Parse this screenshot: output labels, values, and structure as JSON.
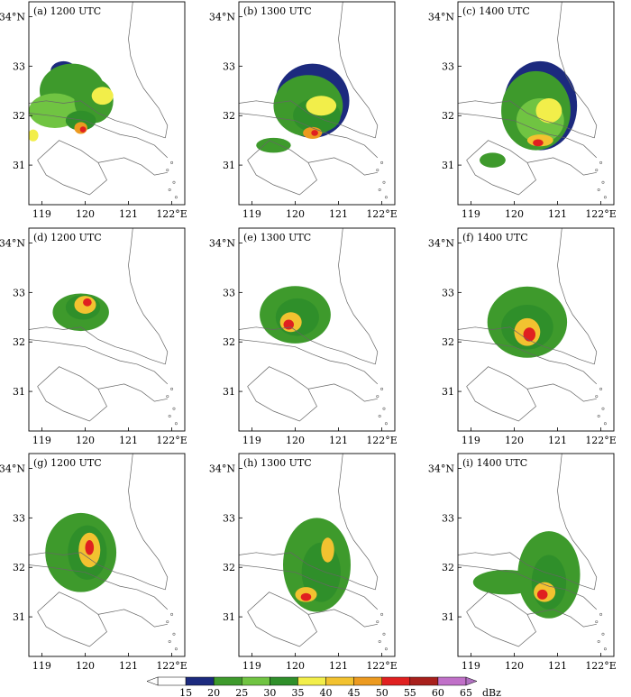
{
  "figure": {
    "xticks": [
      "119",
      "120",
      "121",
      "122°E"
    ],
    "yticks": [
      "34°N",
      "33",
      "32",
      "31"
    ],
    "panels": [
      {
        "label": "(a) 1200  UTC",
        "cells": [
          {
            "lon": 119.5,
            "lat": 32.9,
            "rx": 0.3,
            "ry": 0.2,
            "level": 20
          },
          {
            "lon": 119.7,
            "lat": 32.5,
            "rx": 0.75,
            "ry": 0.55,
            "level": 25
          },
          {
            "lon": 119.3,
            "lat": 32.1,
            "rx": 0.6,
            "ry": 0.35,
            "level": 30
          },
          {
            "lon": 120.2,
            "lat": 32.3,
            "rx": 0.45,
            "ry": 0.45,
            "level": 25
          },
          {
            "lon": 119.9,
            "lat": 31.9,
            "rx": 0.35,
            "ry": 0.2,
            "level": 35
          },
          {
            "lon": 120.4,
            "lat": 32.4,
            "rx": 0.25,
            "ry": 0.18,
            "level": 40
          },
          {
            "lon": 119.9,
            "lat": 31.75,
            "rx": 0.15,
            "ry": 0.12,
            "level": 50
          },
          {
            "lon": 119.95,
            "lat": 31.72,
            "rx": 0.07,
            "ry": 0.06,
            "level": 55
          },
          {
            "lon": 118.8,
            "lat": 31.6,
            "rx": 0.12,
            "ry": 0.12,
            "level": 40
          }
        ]
      },
      {
        "label": "(b) 1300  UTC",
        "cells": [
          {
            "lon": 120.4,
            "lat": 32.3,
            "rx": 0.85,
            "ry": 0.75,
            "level": 20
          },
          {
            "lon": 120.3,
            "lat": 32.2,
            "rx": 0.8,
            "ry": 0.62,
            "level": 25
          },
          {
            "lon": 120.5,
            "lat": 32.0,
            "rx": 0.55,
            "ry": 0.35,
            "level": 35
          },
          {
            "lon": 120.6,
            "lat": 32.2,
            "rx": 0.35,
            "ry": 0.2,
            "level": 40
          },
          {
            "lon": 120.4,
            "lat": 31.65,
            "rx": 0.22,
            "ry": 0.12,
            "level": 50
          },
          {
            "lon": 120.45,
            "lat": 31.65,
            "rx": 0.08,
            "ry": 0.06,
            "level": 55
          },
          {
            "lon": 119.5,
            "lat": 31.4,
            "rx": 0.4,
            "ry": 0.15,
            "level": 25
          }
        ]
      },
      {
        "label": "(c) 1400  UTC",
        "cells": [
          {
            "lon": 120.6,
            "lat": 32.2,
            "rx": 0.85,
            "ry": 0.9,
            "level": 20
          },
          {
            "lon": 120.5,
            "lat": 32.1,
            "rx": 0.8,
            "ry": 0.8,
            "level": 25
          },
          {
            "lon": 120.6,
            "lat": 31.9,
            "rx": 0.55,
            "ry": 0.45,
            "level": 30
          },
          {
            "lon": 120.8,
            "lat": 32.1,
            "rx": 0.3,
            "ry": 0.25,
            "level": 40
          },
          {
            "lon": 120.6,
            "lat": 31.5,
            "rx": 0.3,
            "ry": 0.12,
            "level": 45
          },
          {
            "lon": 120.55,
            "lat": 31.45,
            "rx": 0.12,
            "ry": 0.07,
            "level": 55
          },
          {
            "lon": 119.5,
            "lat": 31.1,
            "rx": 0.3,
            "ry": 0.15,
            "level": 25
          }
        ]
      },
      {
        "label": "(d) 1200  UTC",
        "cells": [
          {
            "lon": 119.9,
            "lat": 32.6,
            "rx": 0.75,
            "ry": 0.45,
            "level": 15
          },
          {
            "lon": 119.9,
            "lat": 32.6,
            "rx": 0.65,
            "ry": 0.38,
            "level": 25
          },
          {
            "lon": 119.95,
            "lat": 32.7,
            "rx": 0.4,
            "ry": 0.25,
            "level": 35
          },
          {
            "lon": 120.0,
            "lat": 32.75,
            "rx": 0.25,
            "ry": 0.18,
            "level": 45
          },
          {
            "lon": 120.05,
            "lat": 32.8,
            "rx": 0.1,
            "ry": 0.08,
            "level": 55
          }
        ]
      },
      {
        "label": "(e) 1300  UTC",
        "cells": [
          {
            "lon": 120.0,
            "lat": 32.55,
            "rx": 0.9,
            "ry": 0.65,
            "level": 15
          },
          {
            "lon": 120.0,
            "lat": 32.55,
            "rx": 0.82,
            "ry": 0.58,
            "level": 25
          },
          {
            "lon": 120.05,
            "lat": 32.5,
            "rx": 0.5,
            "ry": 0.38,
            "level": 35
          },
          {
            "lon": 119.9,
            "lat": 32.4,
            "rx": 0.25,
            "ry": 0.2,
            "level": 45
          },
          {
            "lon": 119.85,
            "lat": 32.35,
            "rx": 0.12,
            "ry": 0.1,
            "level": 55
          }
        ]
      },
      {
        "label": "(f) 1400  UTC",
        "cells": [
          {
            "lon": 120.3,
            "lat": 32.45,
            "rx": 1.0,
            "ry": 0.8,
            "level": 15
          },
          {
            "lon": 120.3,
            "lat": 32.4,
            "rx": 0.92,
            "ry": 0.72,
            "level": 25
          },
          {
            "lon": 120.3,
            "lat": 32.3,
            "rx": 0.6,
            "ry": 0.45,
            "level": 35
          },
          {
            "lon": 120.3,
            "lat": 32.2,
            "rx": 0.3,
            "ry": 0.28,
            "level": 45
          },
          {
            "lon": 120.35,
            "lat": 32.15,
            "rx": 0.14,
            "ry": 0.14,
            "level": 55
          }
        ]
      },
      {
        "label": "(g) 1200  UTC",
        "cells": [
          {
            "lon": 119.9,
            "lat": 32.35,
            "rx": 0.9,
            "ry": 0.9,
            "level": 15
          },
          {
            "lon": 119.9,
            "lat": 32.3,
            "rx": 0.82,
            "ry": 0.8,
            "level": 25
          },
          {
            "lon": 120.05,
            "lat": 32.3,
            "rx": 0.45,
            "ry": 0.55,
            "level": 35
          },
          {
            "lon": 120.1,
            "lat": 32.35,
            "rx": 0.25,
            "ry": 0.35,
            "level": 45
          },
          {
            "lon": 120.1,
            "lat": 32.4,
            "rx": 0.1,
            "ry": 0.15,
            "level": 55
          }
        ]
      },
      {
        "label": "(h) 1300  UTC",
        "cells": [
          {
            "lon": 120.5,
            "lat": 32.1,
            "rx": 0.85,
            "ry": 1.05,
            "level": 15
          },
          {
            "lon": 120.5,
            "lat": 32.05,
            "rx": 0.78,
            "ry": 0.95,
            "level": 25
          },
          {
            "lon": 120.6,
            "lat": 31.9,
            "rx": 0.45,
            "ry": 0.6,
            "level": 35
          },
          {
            "lon": 120.25,
            "lat": 31.45,
            "rx": 0.25,
            "ry": 0.15,
            "level": 45
          },
          {
            "lon": 120.25,
            "lat": 31.4,
            "rx": 0.12,
            "ry": 0.08,
            "level": 55
          },
          {
            "lon": 120.75,
            "lat": 32.35,
            "rx": 0.15,
            "ry": 0.25,
            "level": 45
          }
        ]
      },
      {
        "label": "(i) 1400  UTC",
        "cells": [
          {
            "lon": 120.8,
            "lat": 31.9,
            "rx": 0.8,
            "ry": 0.95,
            "level": 15
          },
          {
            "lon": 120.8,
            "lat": 31.85,
            "rx": 0.72,
            "ry": 0.88,
            "level": 25
          },
          {
            "lon": 119.8,
            "lat": 31.7,
            "rx": 0.75,
            "ry": 0.25,
            "level": 25
          },
          {
            "lon": 120.8,
            "lat": 31.7,
            "rx": 0.4,
            "ry": 0.55,
            "level": 35
          },
          {
            "lon": 120.7,
            "lat": 31.5,
            "rx": 0.25,
            "ry": 0.2,
            "level": 45
          },
          {
            "lon": 120.65,
            "lat": 31.45,
            "rx": 0.12,
            "ry": 0.1,
            "level": 55
          }
        ]
      }
    ]
  },
  "colorbar": {
    "ticks": [
      "15",
      "20",
      "25",
      "30",
      "35",
      "40",
      "45",
      "50",
      "55",
      "60",
      "65"
    ],
    "unit": "dBz",
    "colors": [
      "#ffffff",
      "#1c2a7e",
      "#3e9a2c",
      "#70c442",
      "#2f8f2a",
      "#f2ee4a",
      "#f2c230",
      "#ec9a20",
      "#e02020",
      "#a8201c",
      "#c070c8"
    ]
  },
  "chart_data": {
    "type": "heatmap",
    "panels": [
      "(a) 1200  UTC",
      "(b) 1300  UTC",
      "(c) 1400  UTC",
      "(d) 1200  UTC",
      "(e) 1300  UTC",
      "(f) 1400  UTC",
      "(g) 1200  UTC",
      "(h) 1300  UTC",
      "(i) 1400  UTC"
    ],
    "x": [
      119,
      120,
      121,
      122
    ],
    "y": [
      31,
      32,
      33,
      34
    ],
    "xlim": [
      118.7,
      122.3
    ],
    "ylim": [
      30.2,
      34.3
    ],
    "levels": [
      15,
      20,
      25,
      30,
      35,
      40,
      45,
      50,
      55,
      60,
      65
    ],
    "unit": "dBz",
    "grid": false,
    "legend": "bottom-colorbar"
  }
}
